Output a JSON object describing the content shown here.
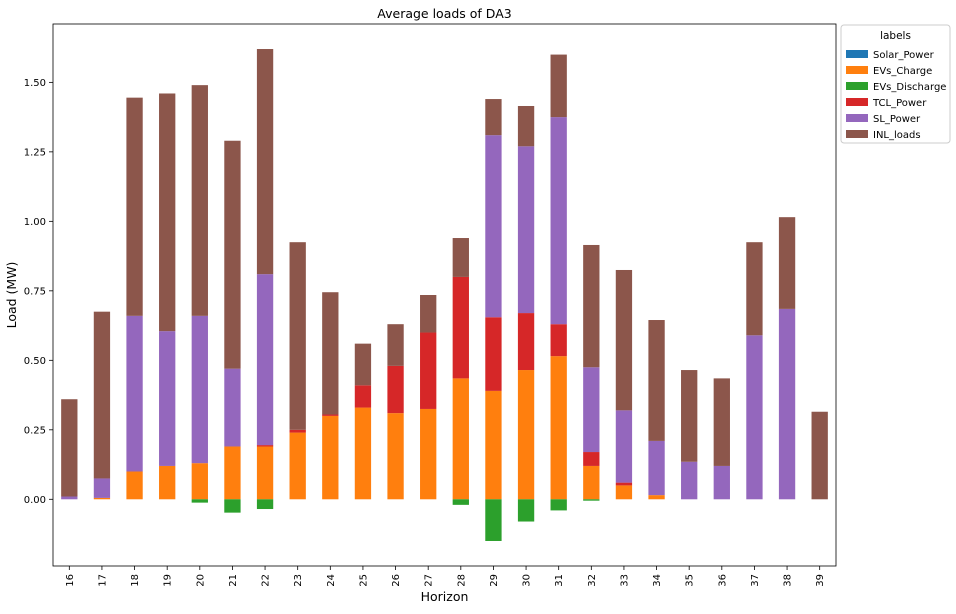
{
  "chart_data": {
    "type": "bar",
    "stacked": true,
    "title": "Average loads of DA3",
    "xlabel": "Horizon",
    "ylabel": "Load (MW)",
    "ylim": [
      -0.24,
      1.71
    ],
    "yticks": [
      0.0,
      0.25,
      0.5,
      0.75,
      1.0,
      1.25,
      1.5
    ],
    "ytick_labels": [
      "0.00",
      "0.25",
      "0.50",
      "0.75",
      "1.00",
      "1.25",
      "1.50"
    ],
    "grid": false,
    "legend": {
      "title": "labels",
      "placement": "outside-top-right"
    },
    "categories": [
      "16",
      "17",
      "18",
      "19",
      "20",
      "21",
      "22",
      "23",
      "24",
      "25",
      "26",
      "27",
      "28",
      "29",
      "30",
      "31",
      "32",
      "33",
      "34",
      "35",
      "36",
      "37",
      "38",
      "39"
    ],
    "series": [
      {
        "name": "Solar_Power",
        "color": "#1f77b4",
        "values": [
          0,
          0,
          0,
          0,
          0,
          0,
          0,
          0,
          0,
          0,
          0,
          0,
          0,
          0,
          0,
          0,
          0,
          0,
          0,
          0,
          0,
          0,
          0,
          0
        ]
      },
      {
        "name": "EVs_Charge",
        "color": "#ff7f0e",
        "values": [
          0,
          0.005,
          0.1,
          0.12,
          0.13,
          0.19,
          0.19,
          0.24,
          0.3,
          0.33,
          0.31,
          0.325,
          0.435,
          0.39,
          0.465,
          0.515,
          0.12,
          0.05,
          0.015,
          0,
          0,
          0,
          0,
          0
        ]
      },
      {
        "name": "EVs_Discharge",
        "color": "#2ca02c",
        "values": [
          0,
          0,
          0,
          0,
          -0.012,
          -0.048,
          -0.035,
          0,
          0,
          0,
          0,
          0,
          -0.02,
          -0.15,
          -0.08,
          -0.04,
          -0.005,
          0,
          0,
          0,
          0,
          0,
          0,
          0
        ]
      },
      {
        "name": "TCL_Power",
        "color": "#d62728",
        "values": [
          0,
          0,
          0,
          0,
          0,
          0,
          0.005,
          0.01,
          0.005,
          0.08,
          0.17,
          0.275,
          0.365,
          0.265,
          0.205,
          0.115,
          0.05,
          0.01,
          0,
          0,
          0,
          0,
          0,
          0
        ]
      },
      {
        "name": "SL_Power",
        "color": "#9467bd",
        "values": [
          0.01,
          0.07,
          0.56,
          0.485,
          0.53,
          0.28,
          0.615,
          0,
          0,
          0,
          0,
          0,
          0,
          0.655,
          0.6,
          0.745,
          0.305,
          0.26,
          0.195,
          0.135,
          0.12,
          0.59,
          0.685,
          0
        ]
      },
      {
        "name": "INL_loads",
        "color": "#8c564b",
        "values": [
          0.35,
          0.6,
          0.785,
          0.855,
          0.83,
          0.82,
          0.81,
          0.675,
          0.44,
          0.15,
          0.15,
          0.135,
          0.14,
          0.13,
          0.145,
          0.225,
          0.44,
          0.505,
          0.435,
          0.33,
          0.315,
          0.335,
          0.33,
          0.315
        ]
      }
    ]
  }
}
